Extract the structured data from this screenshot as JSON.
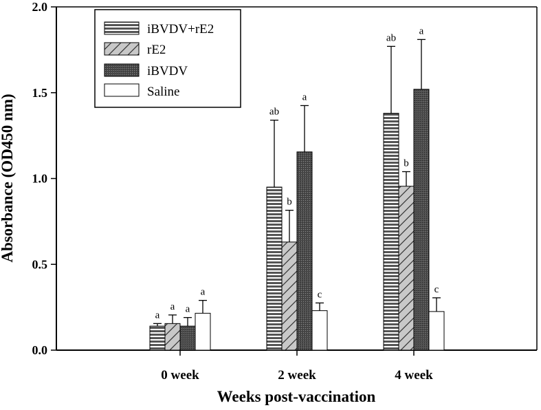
{
  "chart_data": {
    "type": "bar",
    "xlabel": "Weeks post-vaccination",
    "ylabel": "Absorbance (OD450 nm)",
    "ylim": [
      0,
      2.0
    ],
    "yticks": [
      "0.0",
      "0.5",
      "1.0",
      "1.5",
      "2.0"
    ],
    "categories": [
      "0 week",
      "2 week",
      "4 week"
    ],
    "legend_position": "top-left",
    "series": [
      {
        "name": "iBVDV+rE2",
        "pattern": "horizontal-lines",
        "values": [
          0.14,
          0.95,
          1.38
        ],
        "errors": [
          0.015,
          0.39,
          0.39
        ],
        "significance": [
          "a",
          "ab",
          "ab"
        ]
      },
      {
        "name": "rE2",
        "pattern": "diagonal-lines",
        "values": [
          0.155,
          0.63,
          0.955
        ],
        "errors": [
          0.05,
          0.185,
          0.085
        ],
        "significance": [
          "a",
          "b",
          "b"
        ]
      },
      {
        "name": "iBVDV",
        "pattern": "dark-dots",
        "values": [
          0.14,
          1.155,
          1.52
        ],
        "errors": [
          0.05,
          0.27,
          0.29
        ],
        "significance": [
          "a",
          "a",
          "a"
        ]
      },
      {
        "name": "Saline",
        "pattern": "white",
        "values": [
          0.215,
          0.23,
          0.225
        ],
        "errors": [
          0.075,
          0.045,
          0.08
        ],
        "significance": [
          "a",
          "c",
          "c"
        ]
      }
    ]
  }
}
